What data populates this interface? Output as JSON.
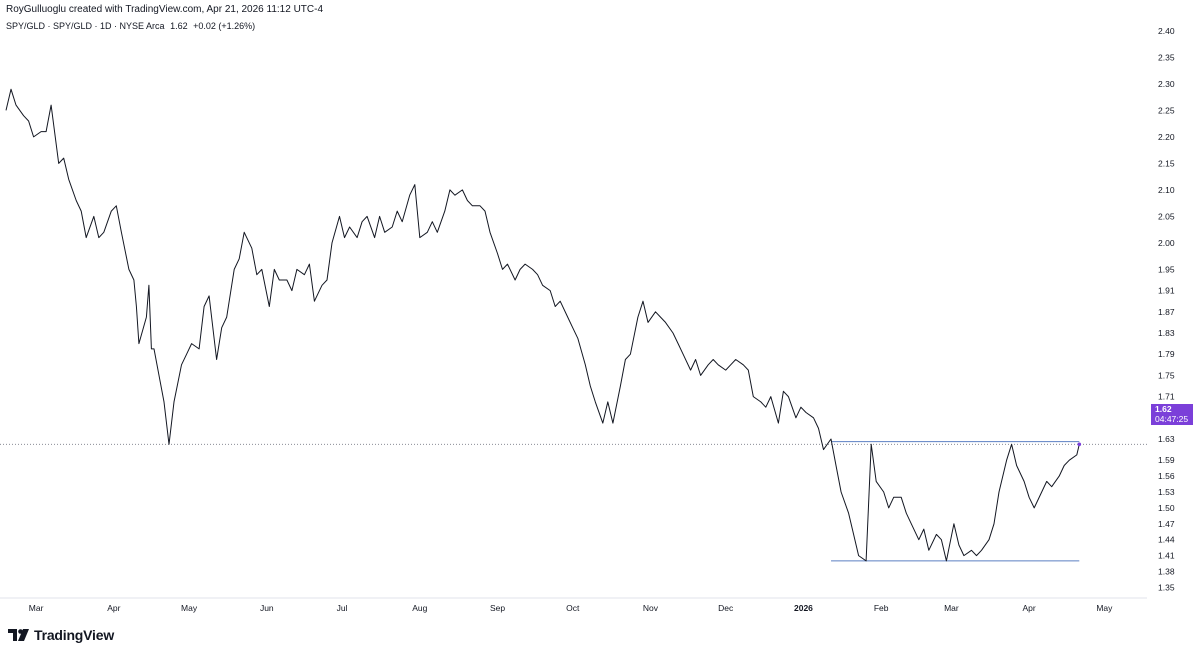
{
  "header": {
    "attribution": "RoyGulluoglu created with TradingView.com, Apr 21, 2026 11:12 UTC-4",
    "symbol": "SPY/GLD · SPY/GLD · 1D · NYSE Arca",
    "last": "1.62",
    "change": "+0.02 (+1.26%)"
  },
  "price_badge": {
    "price": "1.62",
    "countdown": "04:47:25"
  },
  "footer": {
    "logo_text": "TradingView"
  },
  "colors": {
    "line": "#131722",
    "horizontal_level": "#5b7fc2",
    "badge": "#7b3fd9",
    "dotted": "#787b86"
  },
  "chart_data": {
    "type": "line",
    "title": "",
    "xlabel": "",
    "ylabel": "",
    "ylim": [
      1.33,
      2.43
    ],
    "y_ticks": [
      2.4,
      2.35,
      2.3,
      2.25,
      2.2,
      2.15,
      2.1,
      2.05,
      2.0,
      1.95,
      1.91,
      1.87,
      1.83,
      1.79,
      1.75,
      1.71,
      1.67,
      1.63,
      1.59,
      1.56,
      1.53,
      1.5,
      1.47,
      1.44,
      1.41,
      1.38,
      1.35
    ],
    "x_ticks": [
      {
        "date": "2025-03-01",
        "label": "Mar"
      },
      {
        "date": "2025-04-01",
        "label": "Apr"
      },
      {
        "date": "2025-05-01",
        "label": "May"
      },
      {
        "date": "2025-06-01",
        "label": "Jun"
      },
      {
        "date": "2025-07-01",
        "label": "Jul"
      },
      {
        "date": "2025-08-01",
        "label": "Aug"
      },
      {
        "date": "2025-09-01",
        "label": "Sep"
      },
      {
        "date": "2025-10-01",
        "label": "Oct"
      },
      {
        "date": "2025-11-01",
        "label": "Nov"
      },
      {
        "date": "2025-12-01",
        "label": "Dec"
      },
      {
        "date": "2026-01-01",
        "label": "2026"
      },
      {
        "date": "2026-02-01",
        "label": "Feb"
      },
      {
        "date": "2026-03-01",
        "label": "Mar"
      },
      {
        "date": "2026-04-01",
        "label": "Apr"
      },
      {
        "date": "2026-05-01",
        "label": "May"
      }
    ],
    "x_range": [
      "2025-02-17",
      "2026-05-18"
    ],
    "horizontal_levels": [
      {
        "value": 1.625,
        "from": "2026-01-12",
        "to": "2026-04-21"
      },
      {
        "value": 1.4,
        "from": "2026-01-12",
        "to": "2026-04-21"
      }
    ],
    "current_price_line": 1.62,
    "series": [
      {
        "points": [
          [
            "2025-02-17",
            2.25
          ],
          [
            "2025-02-19",
            2.29
          ],
          [
            "2025-02-21",
            2.26
          ],
          [
            "2025-02-24",
            2.24
          ],
          [
            "2025-02-26",
            2.23
          ],
          [
            "2025-02-28",
            2.2
          ],
          [
            "2025-03-03",
            2.21
          ],
          [
            "2025-03-05",
            2.21
          ],
          [
            "2025-03-07",
            2.26
          ],
          [
            "2025-03-10",
            2.15
          ],
          [
            "2025-03-12",
            2.16
          ],
          [
            "2025-03-14",
            2.12
          ],
          [
            "2025-03-17",
            2.08
          ],
          [
            "2025-03-19",
            2.06
          ],
          [
            "2025-03-21",
            2.01
          ],
          [
            "2025-03-24",
            2.05
          ],
          [
            "2025-03-26",
            2.01
          ],
          [
            "2025-03-28",
            2.02
          ],
          [
            "2025-03-31",
            2.06
          ],
          [
            "2025-04-02",
            2.07
          ],
          [
            "2025-04-04",
            2.02
          ],
          [
            "2025-04-07",
            1.95
          ],
          [
            "2025-04-09",
            1.93
          ],
          [
            "2025-04-10",
            1.88
          ],
          [
            "2025-04-11",
            1.81
          ],
          [
            "2025-04-14",
            1.86
          ],
          [
            "2025-04-15",
            1.92
          ],
          [
            "2025-04-16",
            1.8
          ],
          [
            "2025-04-17",
            1.8
          ],
          [
            "2025-04-21",
            1.7
          ],
          [
            "2025-04-23",
            1.62
          ],
          [
            "2025-04-25",
            1.7
          ],
          [
            "2025-04-28",
            1.77
          ],
          [
            "2025-04-30",
            1.79
          ],
          [
            "2025-05-02",
            1.81
          ],
          [
            "2025-05-05",
            1.8
          ],
          [
            "2025-05-07",
            1.88
          ],
          [
            "2025-05-09",
            1.9
          ],
          [
            "2025-05-12",
            1.78
          ],
          [
            "2025-05-14",
            1.84
          ],
          [
            "2025-05-16",
            1.86
          ],
          [
            "2025-05-19",
            1.95
          ],
          [
            "2025-05-21",
            1.97
          ],
          [
            "2025-05-23",
            2.02
          ],
          [
            "2025-05-26",
            1.99
          ],
          [
            "2025-05-28",
            1.94
          ],
          [
            "2025-05-30",
            1.95
          ],
          [
            "2025-06-02",
            1.88
          ],
          [
            "2025-06-04",
            1.95
          ],
          [
            "2025-06-06",
            1.93
          ],
          [
            "2025-06-09",
            1.93
          ],
          [
            "2025-06-11",
            1.91
          ],
          [
            "2025-06-13",
            1.95
          ],
          [
            "2025-06-16",
            1.94
          ],
          [
            "2025-06-18",
            1.96
          ],
          [
            "2025-06-20",
            1.89
          ],
          [
            "2025-06-23",
            1.92
          ],
          [
            "2025-06-25",
            1.93
          ],
          [
            "2025-06-27",
            2.0
          ],
          [
            "2025-06-30",
            2.05
          ],
          [
            "2025-07-02",
            2.01
          ],
          [
            "2025-07-04",
            2.03
          ],
          [
            "2025-07-07",
            2.01
          ],
          [
            "2025-07-09",
            2.04
          ],
          [
            "2025-07-11",
            2.05
          ],
          [
            "2025-07-14",
            2.01
          ],
          [
            "2025-07-16",
            2.05
          ],
          [
            "2025-07-18",
            2.02
          ],
          [
            "2025-07-21",
            2.03
          ],
          [
            "2025-07-23",
            2.06
          ],
          [
            "2025-07-25",
            2.04
          ],
          [
            "2025-07-28",
            2.09
          ],
          [
            "2025-07-30",
            2.11
          ],
          [
            "2025-08-01",
            2.01
          ],
          [
            "2025-08-04",
            2.02
          ],
          [
            "2025-08-06",
            2.04
          ],
          [
            "2025-08-08",
            2.02
          ],
          [
            "2025-08-11",
            2.06
          ],
          [
            "2025-08-13",
            2.1
          ],
          [
            "2025-08-15",
            2.09
          ],
          [
            "2025-08-18",
            2.1
          ],
          [
            "2025-08-20",
            2.08
          ],
          [
            "2025-08-22",
            2.07
          ],
          [
            "2025-08-25",
            2.07
          ],
          [
            "2025-08-27",
            2.06
          ],
          [
            "2025-08-29",
            2.02
          ],
          [
            "2025-09-01",
            1.98
          ],
          [
            "2025-09-03",
            1.95
          ],
          [
            "2025-09-05",
            1.96
          ],
          [
            "2025-09-08",
            1.93
          ],
          [
            "2025-09-10",
            1.95
          ],
          [
            "2025-09-12",
            1.96
          ],
          [
            "2025-09-15",
            1.95
          ],
          [
            "2025-09-17",
            1.94
          ],
          [
            "2025-09-19",
            1.92
          ],
          [
            "2025-09-22",
            1.91
          ],
          [
            "2025-09-24",
            1.88
          ],
          [
            "2025-09-26",
            1.89
          ],
          [
            "2025-09-29",
            1.86
          ],
          [
            "2025-10-01",
            1.84
          ],
          [
            "2025-10-03",
            1.82
          ],
          [
            "2025-10-06",
            1.77
          ],
          [
            "2025-10-08",
            1.73
          ],
          [
            "2025-10-10",
            1.7
          ],
          [
            "2025-10-13",
            1.66
          ],
          [
            "2025-10-15",
            1.7
          ],
          [
            "2025-10-17",
            1.66
          ],
          [
            "2025-10-20",
            1.73
          ],
          [
            "2025-10-22",
            1.78
          ],
          [
            "2025-10-24",
            1.79
          ],
          [
            "2025-10-27",
            1.86
          ],
          [
            "2025-10-29",
            1.89
          ],
          [
            "2025-10-31",
            1.85
          ],
          [
            "2025-11-03",
            1.87
          ],
          [
            "2025-11-05",
            1.86
          ],
          [
            "2025-11-07",
            1.85
          ],
          [
            "2025-11-10",
            1.83
          ],
          [
            "2025-11-12",
            1.81
          ],
          [
            "2025-11-14",
            1.79
          ],
          [
            "2025-11-17",
            1.76
          ],
          [
            "2025-11-19",
            1.78
          ],
          [
            "2025-11-21",
            1.75
          ],
          [
            "2025-11-24",
            1.77
          ],
          [
            "2025-11-26",
            1.78
          ],
          [
            "2025-11-28",
            1.77
          ],
          [
            "2025-12-01",
            1.76
          ],
          [
            "2025-12-03",
            1.77
          ],
          [
            "2025-12-05",
            1.78
          ],
          [
            "2025-12-08",
            1.77
          ],
          [
            "2025-12-10",
            1.76
          ],
          [
            "2025-12-12",
            1.71
          ],
          [
            "2025-12-15",
            1.7
          ],
          [
            "2025-12-17",
            1.69
          ],
          [
            "2025-12-19",
            1.71
          ],
          [
            "2025-12-22",
            1.66
          ],
          [
            "2025-12-24",
            1.72
          ],
          [
            "2025-12-26",
            1.71
          ],
          [
            "2025-12-29",
            1.67
          ],
          [
            "2025-12-31",
            1.69
          ],
          [
            "2026-01-02",
            1.68
          ],
          [
            "2026-01-05",
            1.67
          ],
          [
            "2026-01-07",
            1.65
          ],
          [
            "2026-01-09",
            1.61
          ],
          [
            "2026-01-12",
            1.63
          ],
          [
            "2026-01-14",
            1.58
          ],
          [
            "2026-01-16",
            1.53
          ],
          [
            "2026-01-19",
            1.49
          ],
          [
            "2026-01-21",
            1.45
          ],
          [
            "2026-01-23",
            1.41
          ],
          [
            "2026-01-26",
            1.4
          ],
          [
            "2026-01-28",
            1.62
          ],
          [
            "2026-01-30",
            1.55
          ],
          [
            "2026-02-02",
            1.53
          ],
          [
            "2026-02-04",
            1.5
          ],
          [
            "2026-02-06",
            1.52
          ],
          [
            "2026-02-09",
            1.52
          ],
          [
            "2026-02-11",
            1.49
          ],
          [
            "2026-02-13",
            1.47
          ],
          [
            "2026-02-16",
            1.44
          ],
          [
            "2026-02-18",
            1.46
          ],
          [
            "2026-02-20",
            1.42
          ],
          [
            "2026-02-23",
            1.45
          ],
          [
            "2026-02-25",
            1.44
          ],
          [
            "2026-02-27",
            1.4
          ],
          [
            "2026-03-02",
            1.47
          ],
          [
            "2026-03-04",
            1.43
          ],
          [
            "2026-03-06",
            1.41
          ],
          [
            "2026-03-09",
            1.42
          ],
          [
            "2026-03-11",
            1.41
          ],
          [
            "2026-03-13",
            1.42
          ],
          [
            "2026-03-16",
            1.44
          ],
          [
            "2026-03-18",
            1.47
          ],
          [
            "2026-03-20",
            1.53
          ],
          [
            "2026-03-23",
            1.59
          ],
          [
            "2026-03-25",
            1.62
          ],
          [
            "2026-03-27",
            1.58
          ],
          [
            "2026-03-30",
            1.55
          ],
          [
            "2026-04-01",
            1.52
          ],
          [
            "2026-04-03",
            1.5
          ],
          [
            "2026-04-06",
            1.53
          ],
          [
            "2026-04-08",
            1.55
          ],
          [
            "2026-04-10",
            1.54
          ],
          [
            "2026-04-13",
            1.56
          ],
          [
            "2026-04-15",
            1.58
          ],
          [
            "2026-04-17",
            1.59
          ],
          [
            "2026-04-20",
            1.6
          ],
          [
            "2026-04-21",
            1.62
          ]
        ]
      }
    ]
  }
}
